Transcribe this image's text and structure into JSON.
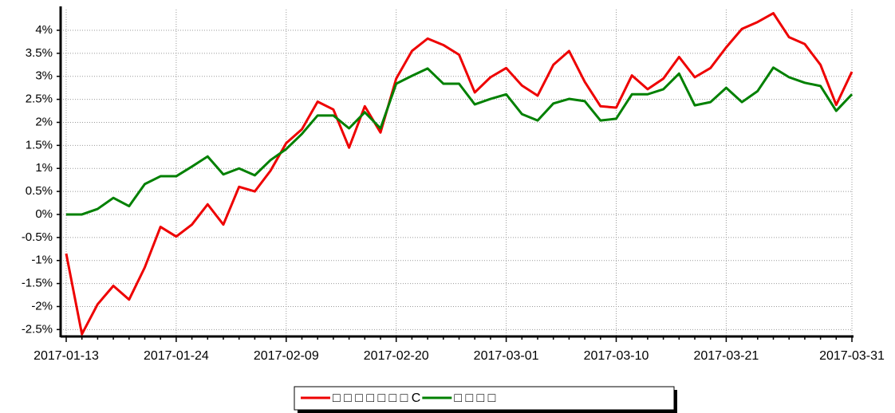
{
  "chart_data": {
    "type": "line",
    "categories": [
      "2017-01-13",
      null,
      null,
      null,
      null,
      null,
      null,
      "2017-01-24",
      null,
      null,
      null,
      null,
      null,
      null,
      "2017-02-09",
      null,
      null,
      null,
      null,
      null,
      null,
      "2017-02-20",
      null,
      null,
      null,
      null,
      null,
      null,
      "2017-03-01",
      null,
      null,
      null,
      null,
      null,
      null,
      "2017-03-10",
      null,
      null,
      null,
      null,
      null,
      null,
      "2017-03-21",
      null,
      null,
      null,
      null,
      null,
      null,
      null,
      "2017-03-31"
    ],
    "series": [
      {
        "name": "□ □ □ □ □ □ □ C",
        "color": "#ee0000",
        "values": [
          -0.85,
          -2.6,
          -1.95,
          -1.55,
          -1.85,
          -1.15,
          -0.27,
          -0.48,
          -0.22,
          0.22,
          -0.22,
          0.6,
          0.5,
          0.95,
          1.55,
          1.85,
          2.45,
          2.28,
          1.45,
          2.35,
          1.78,
          2.95,
          3.55,
          3.82,
          3.68,
          3.47,
          2.65,
          2.98,
          3.18,
          2.8,
          2.58,
          3.25,
          3.55,
          2.88,
          2.35,
          2.32,
          3.02,
          2.72,
          2.95,
          3.42,
          2.98,
          3.18,
          3.63,
          4.03,
          4.18,
          4.37,
          3.85,
          3.7,
          3.25,
          2.38,
          3.1
        ]
      },
      {
        "name": "□ □ □ □",
        "color": "#008000",
        "values": [
          0,
          0,
          0.12,
          0.36,
          0.18,
          0.66,
          0.83,
          0.83,
          1.04,
          1.26,
          0.87,
          1.0,
          0.85,
          1.18,
          1.42,
          1.75,
          2.15,
          2.15,
          1.87,
          2.22,
          1.87,
          2.84,
          3.01,
          3.17,
          2.84,
          2.84,
          2.39,
          2.51,
          2.61,
          2.18,
          2.04,
          2.41,
          2.51,
          2.46,
          2.04,
          2.08,
          2.61,
          2.61,
          2.72,
          3.06,
          2.37,
          2.44,
          2.75,
          2.44,
          2.68,
          3.19,
          2.98,
          2.86,
          2.79,
          2.25,
          2.61
        ]
      }
    ],
    "ylim": [
      -2.65,
      4.45
    ],
    "yticks": [
      {
        "value": -2.5,
        "label": "-2.5%"
      },
      {
        "value": -2,
        "label": "-2%"
      },
      {
        "value": -1.5,
        "label": "-1.5%"
      },
      {
        "value": -1,
        "label": "-1%"
      },
      {
        "value": -0.5,
        "label": "-0.5%"
      },
      {
        "value": 0,
        "label": "0%"
      },
      {
        "value": 0.5,
        "label": "0.5%"
      },
      {
        "value": 1,
        "label": "1%"
      },
      {
        "value": 1.5,
        "label": "1.5%"
      },
      {
        "value": 2,
        "label": "2%"
      },
      {
        "value": 2.5,
        "label": "2.5%"
      },
      {
        "value": 3,
        "label": "3%"
      },
      {
        "value": 3.5,
        "label": "3.5%"
      },
      {
        "value": 4,
        "label": "4%"
      }
    ],
    "grid": true,
    "legend": "bottom"
  }
}
